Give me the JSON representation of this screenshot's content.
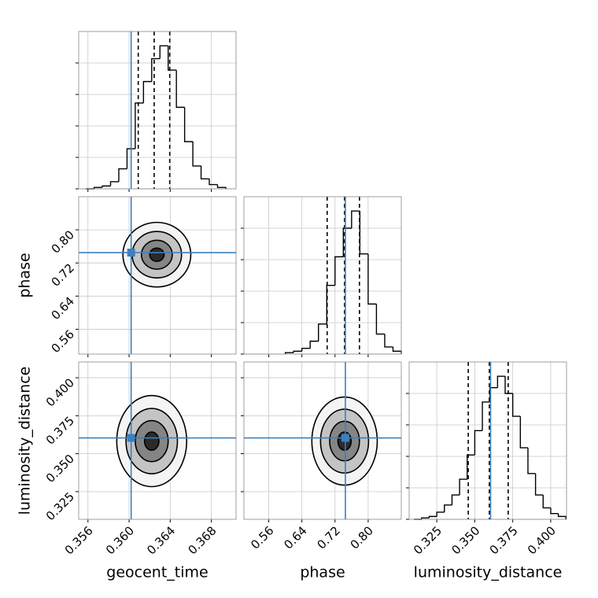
{
  "chart_data": {
    "type": "corner",
    "grid": true,
    "hist_color": "#000000",
    "truth_color": "#3d7fbf",
    "parameters": [
      {
        "label": "geocent_time",
        "lim": [
          0.3551,
          0.3704
        ],
        "ticks": [
          0.356,
          {
            "value": 0.36,
            "label": "0.360"
          },
          0.364,
          0.368
        ],
        "truth": 0.3602,
        "quantiles": [
          0.36089,
          0.36244,
          0.36395
        ],
        "bins": [
          0.3558,
          0.3566,
          0.3574,
          0.3582,
          0.359,
          0.3598,
          0.3606,
          0.3614,
          0.3622,
          0.363,
          0.3638,
          0.3646,
          0.3654,
          0.3662,
          0.367,
          0.3678,
          0.3686,
          0.3694
        ],
        "counts": [
          0,
          1,
          2,
          5,
          14,
          28,
          60,
          75,
          91,
          100,
          83,
          57,
          33,
          16,
          7,
          3,
          1
        ],
        "ylim": [
          0,
          110
        ],
        "yticks": [
          0,
          22,
          44,
          66,
          88
        ]
      },
      {
        "label": "phase",
        "lim": [
          0.5,
          0.88
        ],
        "ticks": [
          0.56,
          0.64,
          0.72,
          {
            "value": 0.8,
            "label": "0.80"
          }
        ],
        "truth": 0.745,
        "quantiles": [
          0.701,
          0.743,
          0.779
        ],
        "bins": [
          0.6,
          0.62,
          0.64,
          0.66,
          0.68,
          0.7,
          0.72,
          0.74,
          0.76,
          0.78,
          0.8,
          0.82,
          0.84,
          0.86,
          0.88
        ],
        "counts": [
          1,
          2,
          4,
          9,
          21,
          48,
          68,
          88,
          100,
          70,
          35,
          14,
          5,
          2
        ],
        "ylim": [
          0,
          110
        ],
        "yticks": [
          0,
          22,
          44,
          66,
          88
        ]
      },
      {
        "label": "luminosity_distance",
        "lim": [
          0.3068,
          0.4104
        ],
        "ticks": [
          0.325,
          {
            "value": 0.35,
            "label": "0.350"
          },
          0.375,
          {
            "value": 0.4,
            "label": "0.400"
          }
        ],
        "truth": 0.3604,
        "quantiles": [
          0.3457,
          0.3596,
          0.372
        ],
        "bins": [
          0.31,
          0.315,
          0.32,
          0.325,
          0.33,
          0.335,
          0.34,
          0.345,
          0.35,
          0.355,
          0.36,
          0.365,
          0.37,
          0.375,
          0.38,
          0.385,
          0.39,
          0.395,
          0.4,
          0.405,
          0.41
        ],
        "counts": [
          0,
          1,
          2,
          5,
          10,
          17,
          28,
          45,
          62,
          82,
          92,
          100,
          88,
          72,
          50,
          32,
          17,
          8,
          4,
          2
        ],
        "ylim": [
          0,
          110
        ],
        "yticks": [
          0,
          22,
          44,
          66,
          88
        ]
      }
    ],
    "pairs": [
      {
        "x": 0,
        "y": 1,
        "contours": [
          {
            "cx": 0.3627,
            "cy": 0.74,
            "rx": 0.0033,
            "ry": 0.078
          },
          {
            "cx": 0.3627,
            "cy": 0.74,
            "rx": 0.0024,
            "ry": 0.056
          },
          {
            "cx": 0.3627,
            "cy": 0.74,
            "rx": 0.0015,
            "ry": 0.035
          },
          {
            "cx": 0.3627,
            "cy": 0.74,
            "rx": 0.0007,
            "ry": 0.016
          }
        ]
      },
      {
        "x": 0,
        "y": 2,
        "contours": [
          {
            "cx": 0.3622,
            "cy": 0.3583,
            "rx": 0.0034,
            "ry": 0.03
          },
          {
            "cx": 0.3622,
            "cy": 0.3583,
            "rx": 0.0025,
            "ry": 0.0215
          },
          {
            "cx": 0.3622,
            "cy": 0.3583,
            "rx": 0.0016,
            "ry": 0.0135
          },
          {
            "cx": 0.3622,
            "cy": 0.3583,
            "rx": 0.0007,
            "ry": 0.006
          }
        ]
      },
      {
        "x": 1,
        "y": 2,
        "contours": [
          {
            "cx": 0.743,
            "cy": 0.3583,
            "rx": 0.079,
            "ry": 0.029
          },
          {
            "cx": 0.743,
            "cy": 0.3583,
            "rx": 0.058,
            "ry": 0.021
          },
          {
            "cx": 0.743,
            "cy": 0.3583,
            "rx": 0.036,
            "ry": 0.013
          },
          {
            "cx": 0.743,
            "cy": 0.3583,
            "rx": 0.016,
            "ry": 0.006
          }
        ]
      }
    ]
  }
}
